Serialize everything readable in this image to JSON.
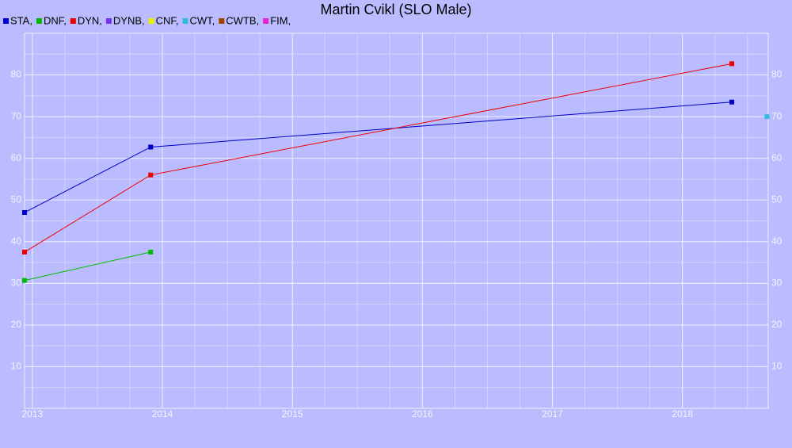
{
  "chart_data": {
    "type": "line",
    "title": "Martin Cvikl (SLO Male)",
    "xlim": [
      2012.94,
      2018.66
    ],
    "xticks": [
      2013,
      2014,
      2015,
      2016,
      2017,
      2018
    ],
    "ylim": [
      0,
      90
    ],
    "yticks": [
      10,
      20,
      30,
      40,
      50,
      60,
      70,
      80
    ],
    "grid": true,
    "series": [
      {
        "name": "STA,",
        "color": "#0000cc",
        "x": [
          2012.94,
          2013.91,
          2018.38
        ],
        "values": [
          47,
          62.7,
          73.5
        ]
      },
      {
        "name": "DNF,",
        "color": "#00bb00",
        "x": [
          2012.94,
          2013.91
        ],
        "values": [
          30.7,
          37.5
        ]
      },
      {
        "name": "DYN,",
        "color": "#ee0000",
        "x": [
          2012.94,
          2013.91,
          2018.38
        ],
        "values": [
          37.5,
          56,
          82.7
        ]
      },
      {
        "name": "DYNB,",
        "color": "#7733ee",
        "x": [],
        "values": []
      },
      {
        "name": "CNF,",
        "color": "#eeee00",
        "x": [],
        "values": []
      },
      {
        "name": "CWT,",
        "color": "#33bbdd",
        "x": [
          2018.65
        ],
        "values": [
          70
        ]
      },
      {
        "name": "CWTB,",
        "color": "#994400",
        "x": [],
        "values": []
      },
      {
        "name": "FIM,",
        "color": "#ee22cc",
        "x": [],
        "values": []
      }
    ]
  }
}
